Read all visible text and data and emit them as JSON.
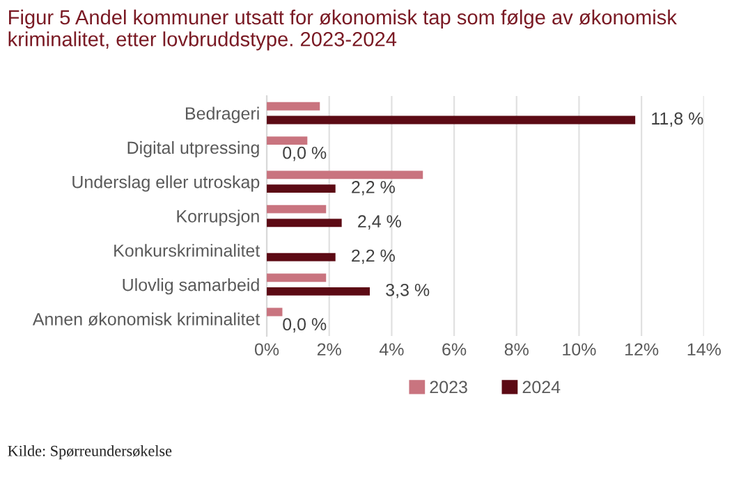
{
  "chart_data": {
    "type": "bar",
    "orientation": "horizontal",
    "title": "Figur 5 Andel kommuner utsatt for økonomisk tap som følge av økonomisk kriminalitet, etter lovbruddstype. 2023-2024",
    "categories": [
      "Bedrageri",
      "Digital utpressing",
      "Underslag eller utroskap",
      "Korrupsjon",
      "Konkurskriminalitet",
      "Ulovlig samarbeid",
      "Annen økonomisk kriminalitet"
    ],
    "series": [
      {
        "name": "2023",
        "color": "#c9747f",
        "values": [
          1.7,
          1.3,
          5.0,
          1.9,
          0,
          1.9,
          0.5
        ]
      },
      {
        "name": "2024",
        "color": "#5c0a14",
        "values": [
          11.8,
          0.0,
          2.2,
          2.4,
          2.2,
          3.3,
          0.0
        ],
        "value_labels": [
          "11,8 %",
          "0,0 %",
          "2,2 %",
          "2,4 %",
          "2,2 %",
          "3,3 %",
          "0,0 %"
        ]
      }
    ],
    "xlim": [
      0,
      14
    ],
    "xticks": [
      {
        "value": 0,
        "label": "0%"
      },
      {
        "value": 2,
        "label": "2%"
      },
      {
        "value": 4,
        "label": "4%"
      },
      {
        "value": 6,
        "label": "6%"
      },
      {
        "value": 8,
        "label": "8%"
      },
      {
        "value": 10,
        "label": "10%"
      },
      {
        "value": 12,
        "label": "12%"
      },
      {
        "value": 14,
        "label": "14%"
      }
    ],
    "grid": "x",
    "legend": "bottom",
    "annotations": [
      "Kilde: Spørreundersøkelse"
    ]
  }
}
